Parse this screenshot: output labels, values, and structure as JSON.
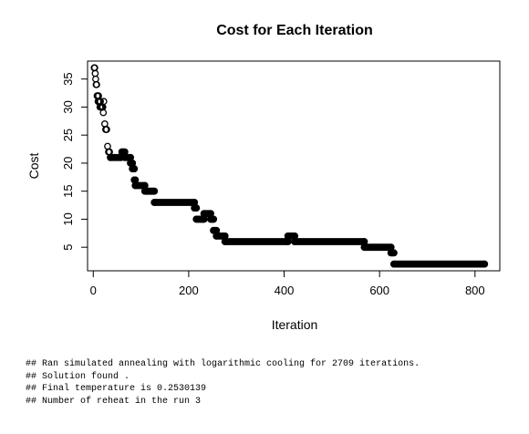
{
  "chart_data": {
    "type": "scatter",
    "title": "Cost for Each Iteration",
    "xlabel": "Iteration",
    "ylabel": "Cost",
    "xlim": [
      -12,
      852
    ],
    "ylim": [
      0.8,
      38.2
    ],
    "xticks": [
      0,
      200,
      400,
      600,
      800
    ],
    "yticks": [
      5,
      10,
      15,
      20,
      25,
      30,
      35
    ],
    "marker": "open-circle",
    "grid": false,
    "points": [
      [
        2,
        37
      ],
      [
        3,
        37
      ],
      [
        4,
        36
      ],
      [
        5,
        35
      ],
      [
        6,
        34
      ],
      [
        7,
        34
      ],
      [
        8,
        32
      ],
      [
        9,
        32
      ],
      [
        10,
        31
      ],
      [
        11,
        32
      ],
      [
        12,
        31
      ],
      [
        13,
        31
      ],
      [
        14,
        30
      ],
      [
        15,
        31
      ],
      [
        16,
        30
      ],
      [
        17,
        30
      ],
      [
        18,
        30
      ],
      [
        19,
        30
      ],
      [
        20,
        30
      ],
      [
        21,
        29
      ],
      [
        22,
        31
      ],
      [
        24,
        27
      ],
      [
        26,
        26
      ],
      [
        28,
        26
      ],
      [
        30,
        23
      ],
      [
        32,
        22
      ],
      [
        34,
        22
      ],
      [
        36,
        21
      ]
    ],
    "segments": [
      {
        "x_start": 36,
        "x_end": 58,
        "y": 21
      },
      {
        "x_start": 60,
        "x_end": 66,
        "y": 22
      },
      {
        "x_start": 66,
        "x_end": 78,
        "y": 21
      },
      {
        "x_start": 78,
        "x_end": 82,
        "y": 20
      },
      {
        "x_start": 82,
        "x_end": 86,
        "y": 19
      },
      {
        "x_start": 86,
        "x_end": 88,
        "y": 17
      },
      {
        "x_start": 88,
        "x_end": 108,
        "y": 16
      },
      {
        "x_start": 108,
        "x_end": 128,
        "y": 15
      },
      {
        "x_start": 128,
        "x_end": 212,
        "y": 13
      },
      {
        "x_start": 212,
        "x_end": 216,
        "y": 12
      },
      {
        "x_start": 216,
        "x_end": 232,
        "y": 10
      },
      {
        "x_start": 232,
        "x_end": 246,
        "y": 11
      },
      {
        "x_start": 246,
        "x_end": 252,
        "y": 10
      },
      {
        "x_start": 252,
        "x_end": 258,
        "y": 8
      },
      {
        "x_start": 258,
        "x_end": 276,
        "y": 7
      },
      {
        "x_start": 276,
        "x_end": 408,
        "y": 6
      },
      {
        "x_start": 408,
        "x_end": 422,
        "y": 7
      },
      {
        "x_start": 422,
        "x_end": 568,
        "y": 6
      },
      {
        "x_start": 568,
        "x_end": 624,
        "y": 5
      },
      {
        "x_start": 624,
        "x_end": 630,
        "y": 4
      },
      {
        "x_start": 630,
        "x_end": 820,
        "y": 2
      }
    ]
  },
  "console": {
    "lines": [
      "## Ran simulated annealing with logarithmic cooling for 2709 iterations.",
      "## Solution found .",
      "## Final temperature is 0.2530139",
      "## Number of reheat in the run 3"
    ]
  }
}
